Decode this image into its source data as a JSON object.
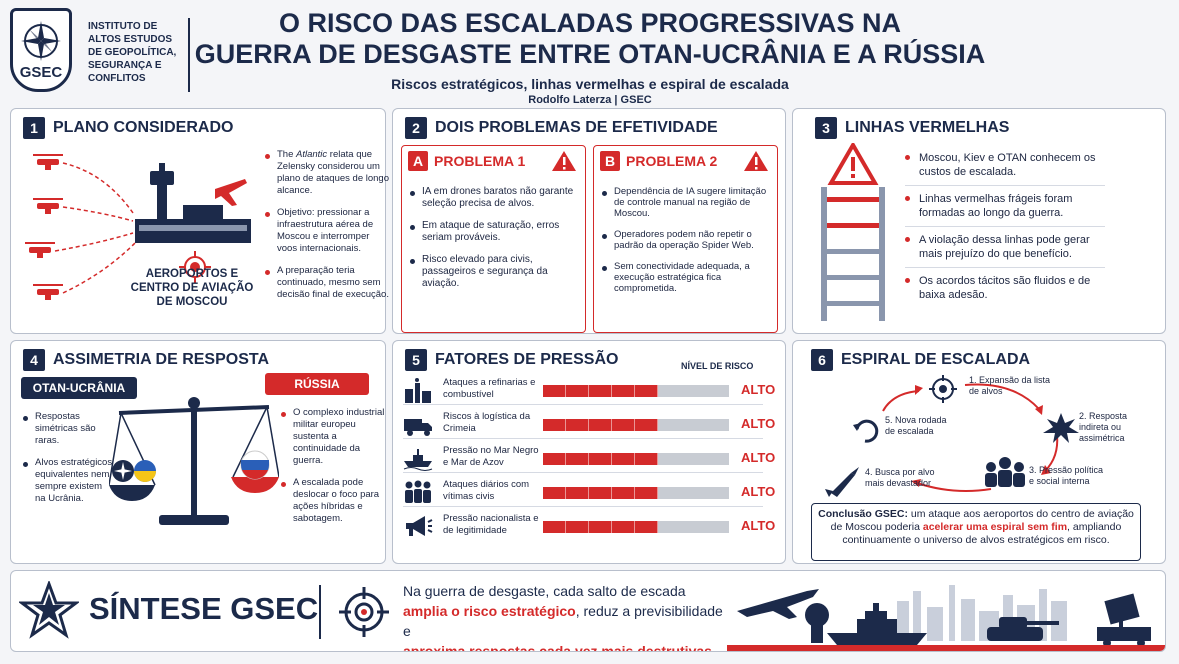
{
  "header": {
    "logo_text": "GSEC",
    "institute": "INSTITUTO DE ALTOS ESTUDOS DE GEOPOLÍTICA, SEGURANÇA E CONFLITOS",
    "title_line1": "O RISCO DAS ESCALADAS PROGRESSIVAS NA",
    "title_line2": "GUERRA DE DESGASTE ENTRE OTAN-UCRÂNIA E A RÚSSIA",
    "subtitle": "Riscos estratégicos, linhas vermelhas e espiral de escalada",
    "author": "Rodolfo Laterza  |  GSEC"
  },
  "panel1": {
    "num": "1",
    "title": "PLANO CONSIDERADO",
    "airport_label": "AEROPORTOS E CENTRO DE AVIAÇÃO DE MOSCOU",
    "bullet1_pre": "The ",
    "bullet1_em": "Atlantic",
    "bullet1_post": " relata que Zelensky considerou um plano de ataques de longo alcance.",
    "bullet2": "Objetivo: pressionar a infraestrutura aérea de Moscou e interromper voos internacionais.",
    "bullet3": "A preparação teria continuado, mesmo sem decisão final de execução."
  },
  "panel2": {
    "num": "2",
    "title": "DOIS PROBLEMAS DE EFETIVIDADE",
    "probA": {
      "letter": "A",
      "title": "PROBLEMA 1",
      "items": [
        "IA em drones baratos não garante seleção precisa de alvos.",
        "Em ataque de saturação, erros seriam prováveis.",
        "Risco elevado para civis, passageiros e segurança da aviação."
      ]
    },
    "probB": {
      "letter": "B",
      "title": "PROBLEMA 2",
      "items": [
        "Dependência de IA sugere limitação de controle manual na região de Moscou.",
        "Operadores podem não repetir o padrão da operação Spider Web.",
        "Sem conectividade adequada, a execução estratégica fica comprometida."
      ]
    }
  },
  "panel3": {
    "num": "3",
    "title": "LINHAS VERMELHAS",
    "items": [
      "Moscou, Kiev e OTAN conhecem os custos de escalada.",
      "Linhas vermelhas frágeis foram formadas ao longo da guerra.",
      "A violação dessa linhas pode gerar mais prejuízo do que benefício.",
      "Os acordos tácitos são fluidos e de baixa adesão."
    ]
  },
  "panel4": {
    "num": "4",
    "title": "ASSIMETRIA DE RESPOSTA",
    "left_label": "OTAN-UCRÂNIA",
    "right_label": "RÚSSIA",
    "left_items": [
      "Respostas simétricas são raras.",
      "Alvos estratégicos equivalentes nem sempre existem na Ucrânia."
    ],
    "right_items": [
      "O complexo industrial militar europeu sustenta a continuidade da guerra.",
      "A escalada pode deslocar o foco para ações híbridas e sabotagem."
    ]
  },
  "panel5": {
    "num": "5",
    "title": "FATORES DE PRESSÃO",
    "risk_header": "NÍVEL DE RISCO",
    "factors": [
      {
        "label": "Ataques a refinarias e combustível",
        "level": "ALTO",
        "fill": 0.62
      },
      {
        "label": "Riscos à logística da Crimeia",
        "level": "ALTO",
        "fill": 0.62
      },
      {
        "label": "Pressão no Mar Negro e Mar de Azov",
        "level": "ALTO",
        "fill": 0.62
      },
      {
        "label": "Ataques diários com vítimas civis",
        "level": "ALTO",
        "fill": 0.62
      },
      {
        "label": "Pressão nacionalista e de legitimidade",
        "level": "ALTO",
        "fill": 0.62
      }
    ]
  },
  "panel6": {
    "num": "6",
    "title": "ESPIRAL DE ESCALADA",
    "steps": [
      "1. Expansão da lista de alvos",
      "2. Resposta indireta ou assimétrica",
      "3. Pressão política e social interna",
      "4. Busca por alvo mais devastador",
      "5. Nova rodada de escalada"
    ],
    "conclusion_bold": "Conclusão GSEC:",
    "conclusion_1": " um ataque aos aeroportos do centro de aviação de Moscou poderia ",
    "conclusion_red": "acelerar uma espiral sem fim",
    "conclusion_2": ", ampliando continuamente o universo de alvos estratégicos em risco."
  },
  "synthesis": {
    "title": "SÍNTESE GSEC",
    "line1": "Na guerra de desgaste, cada salto de escada",
    "line2_red": "amplia o risco estratégico",
    "line2_post": ", reduz a previsibilidade e",
    "line3_red": "aproxima respostas cada vez mais destrutivas."
  },
  "colors": {
    "navy": "#1c2a4a",
    "red": "#d42a2a",
    "background": "#f4f5f8"
  }
}
